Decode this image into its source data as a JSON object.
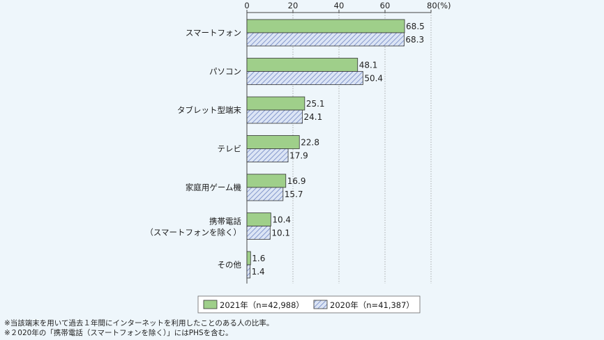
{
  "chart_data": {
    "type": "bar",
    "orientation": "horizontal",
    "categories": [
      [
        "スマートフォン"
      ],
      [
        "パソコン"
      ],
      [
        "タブレット型端末"
      ],
      [
        "テレビ"
      ],
      [
        "家庭用ゲーム機"
      ],
      [
        "携帯電話",
        "（スマートフォンを除く）"
      ],
      [
        "その他"
      ]
    ],
    "series": [
      {
        "name": "2021年（n=42,988）",
        "values": [
          68.5,
          48.1,
          25.1,
          22.8,
          16.9,
          10.4,
          1.6
        ],
        "color": "#9fcf8a",
        "pattern": "solid"
      },
      {
        "name": "2020年（n=41,387）",
        "values": [
          68.3,
          50.4,
          24.1,
          17.9,
          15.7,
          10.1,
          1.4
        ],
        "color": "#c9d6ef",
        "pattern": "hatched"
      }
    ],
    "x_ticks": [
      "0",
      "20",
      "40",
      "60",
      "80(%)"
    ],
    "xlim": [
      0,
      80
    ],
    "grid": "vertical dotted",
    "legend_position": "bottom-center"
  },
  "notes": [
    "※当該端末を用いて過去１年間にインターネットを利用したことのある人の比率。",
    "※２020年の「携帯電話（スマートフォンを除く）」にはPHSを含む。"
  ]
}
